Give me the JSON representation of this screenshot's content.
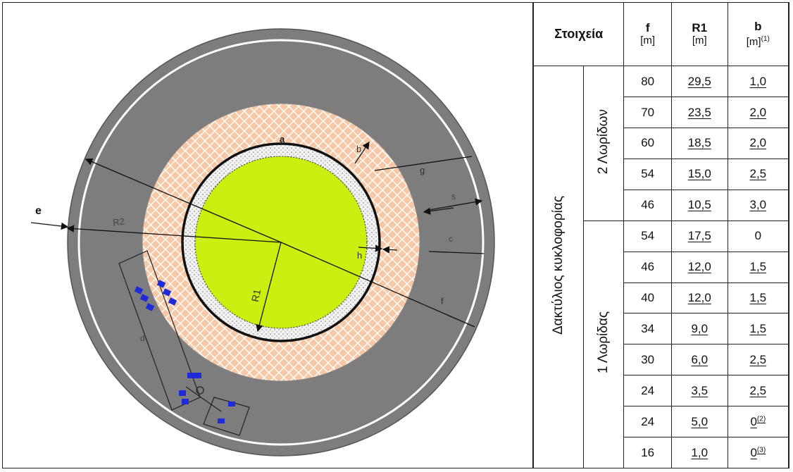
{
  "diagram": {
    "labels": {
      "e": "e",
      "R2": "R2",
      "R1": "R1",
      "a": "a",
      "b": "b",
      "g": "g",
      "h": "h",
      "f": "f",
      "s": "s",
      "c": "c",
      "d": "d"
    }
  },
  "table": {
    "header": {
      "elements": "Στοιχεία",
      "f": "f",
      "f_unit": "[m]",
      "r1": "R1",
      "r1_unit": "[m]",
      "b": "b",
      "b_unit": "[m]",
      "b_note": "(1)"
    },
    "group_label": "Δακτύλιος κυκλοφορίας",
    "two_lane_label": "2 Λωρίδων",
    "one_lane_label": "1 Λωρίδας",
    "rows": [
      {
        "f": "80",
        "r1": "29,5",
        "b": "1,0",
        "note": ""
      },
      {
        "f": "70",
        "r1": "23,5",
        "b": "2,0",
        "note": ""
      },
      {
        "f": "60",
        "r1": "18,5",
        "b": "2,0",
        "note": ""
      },
      {
        "f": "54",
        "r1": "15,0",
        "b": "2,5",
        "note": ""
      },
      {
        "f": "46",
        "r1": "10,5",
        "b": "3,0",
        "note": ""
      },
      {
        "f": "54",
        "r1": "17,5",
        "b": "0",
        "note": ""
      },
      {
        "f": "46",
        "r1": "12,0",
        "b": "1,5",
        "note": ""
      },
      {
        "f": "40",
        "r1": "12,0",
        "b": "1,5",
        "note": ""
      },
      {
        "f": "34",
        "r1": "9,0",
        "b": "1,5",
        "note": ""
      },
      {
        "f": "30",
        "r1": "6,0",
        "b": "2,5",
        "note": ""
      },
      {
        "f": "24",
        "r1": "3,5",
        "b": "2,5",
        "note": ""
      },
      {
        "f": "24",
        "r1": "5,0",
        "b": "0",
        "note": "(2)"
      },
      {
        "f": "16",
        "r1": "1,0",
        "b": "0",
        "note": "(3)"
      }
    ]
  }
}
